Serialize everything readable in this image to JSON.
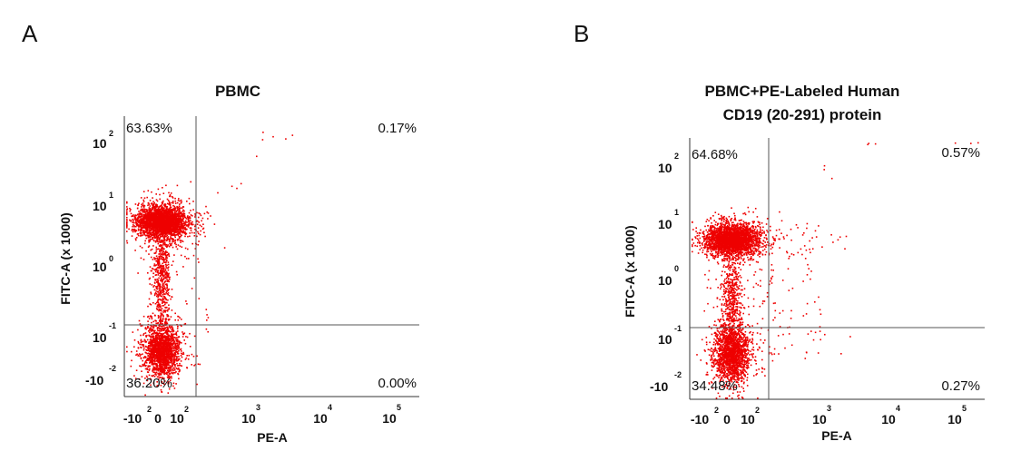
{
  "chart_data": [
    {
      "type": "scatter",
      "panel_label": "A",
      "title": [
        "PBMC"
      ],
      "xlabel": "PE-A",
      "ylabel": "FITC-A (x 1000)",
      "x_ticks": [
        {
          "base": "-10",
          "exp": "2"
        },
        {
          "base": "0",
          "exp": ""
        },
        {
          "base": "10",
          "exp": "2"
        },
        {
          "base": "10",
          "exp": "3"
        },
        {
          "base": "10",
          "exp": "4"
        },
        {
          "base": "10",
          "exp": "5"
        }
      ],
      "y_ticks": [
        {
          "base": "-10",
          "exp": "-2"
        },
        {
          "base": "10",
          "exp": "-1"
        },
        {
          "base": "10",
          "exp": "0"
        },
        {
          "base": "10",
          "exp": "1"
        },
        {
          "base": "10",
          "exp": "2"
        }
      ],
      "quadrants": {
        "upper_left": "63.63%",
        "upper_right": "0.17%",
        "lower_left": "36.20%",
        "lower_right": "0.00%"
      },
      "point_color": "#ee0000"
    },
    {
      "type": "scatter",
      "panel_label": "B",
      "title": [
        "PBMC+PE-Labeled Human",
        "CD19 (20-291) protein"
      ],
      "xlabel": "PE-A",
      "ylabel": "FITC-A (x 1000)",
      "x_ticks": [
        {
          "base": "-10",
          "exp": "2"
        },
        {
          "base": "0",
          "exp": ""
        },
        {
          "base": "10",
          "exp": "2"
        },
        {
          "base": "10",
          "exp": "3"
        },
        {
          "base": "10",
          "exp": "4"
        },
        {
          "base": "10",
          "exp": "5"
        }
      ],
      "y_ticks": [
        {
          "base": "-10",
          "exp": "-2"
        },
        {
          "base": "10",
          "exp": "-1"
        },
        {
          "base": "10",
          "exp": "0"
        },
        {
          "base": "10",
          "exp": "1"
        },
        {
          "base": "10",
          "exp": "2"
        }
      ],
      "quadrants": {
        "upper_left": "64.68%",
        "upper_right": "0.57%",
        "lower_left": "34.48%",
        "lower_right": "0.27%"
      },
      "point_color": "#ee0000"
    }
  ]
}
